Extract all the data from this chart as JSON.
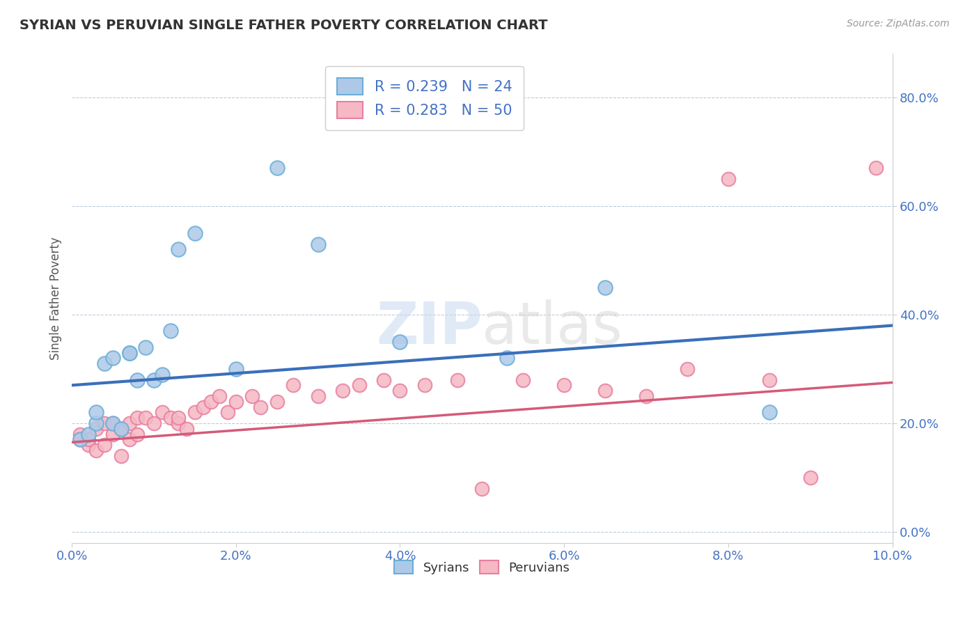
{
  "title": "SYRIAN VS PERUVIAN SINGLE FATHER POVERTY CORRELATION CHART",
  "source": "Source: ZipAtlas.com",
  "xlim": [
    0.0,
    0.1
  ],
  "ylim": [
    -0.02,
    0.88
  ],
  "syrian_R": 0.239,
  "syrian_N": 24,
  "peruvian_R": 0.283,
  "peruvian_N": 50,
  "syrian_color": "#aec9e8",
  "peruvian_color": "#f5b8c4",
  "syrian_edge_color": "#6baed6",
  "peruvian_edge_color": "#e87fa0",
  "syrian_line_color": "#3a6fba",
  "peruvian_line_color": "#d45a7a",
  "tick_color": "#4472c4",
  "watermark_text": "ZIPatlas",
  "syrian_x": [
    0.001,
    0.002,
    0.003,
    0.003,
    0.004,
    0.005,
    0.005,
    0.006,
    0.007,
    0.007,
    0.008,
    0.009,
    0.01,
    0.011,
    0.012,
    0.013,
    0.015,
    0.02,
    0.025,
    0.03,
    0.04,
    0.053,
    0.065,
    0.085
  ],
  "syrian_y": [
    0.17,
    0.18,
    0.2,
    0.22,
    0.31,
    0.2,
    0.32,
    0.19,
    0.33,
    0.33,
    0.28,
    0.34,
    0.28,
    0.29,
    0.37,
    0.52,
    0.55,
    0.3,
    0.67,
    0.53,
    0.35,
    0.32,
    0.45,
    0.22
  ],
  "peruvian_x": [
    0.001,
    0.001,
    0.002,
    0.002,
    0.003,
    0.003,
    0.004,
    0.004,
    0.005,
    0.005,
    0.006,
    0.006,
    0.007,
    0.007,
    0.008,
    0.008,
    0.009,
    0.01,
    0.011,
    0.012,
    0.013,
    0.013,
    0.014,
    0.015,
    0.016,
    0.017,
    0.018,
    0.019,
    0.02,
    0.022,
    0.023,
    0.025,
    0.027,
    0.03,
    0.033,
    0.035,
    0.038,
    0.04,
    0.043,
    0.047,
    0.05,
    0.055,
    0.06,
    0.065,
    0.07,
    0.075,
    0.08,
    0.085,
    0.09,
    0.098
  ],
  "peruvian_y": [
    0.18,
    0.17,
    0.16,
    0.17,
    0.15,
    0.19,
    0.16,
    0.2,
    0.18,
    0.2,
    0.14,
    0.19,
    0.2,
    0.17,
    0.18,
    0.21,
    0.21,
    0.2,
    0.22,
    0.21,
    0.2,
    0.21,
    0.19,
    0.22,
    0.23,
    0.24,
    0.25,
    0.22,
    0.24,
    0.25,
    0.23,
    0.24,
    0.27,
    0.25,
    0.26,
    0.27,
    0.28,
    0.26,
    0.27,
    0.28,
    0.08,
    0.28,
    0.27,
    0.26,
    0.25,
    0.3,
    0.65,
    0.28,
    0.1,
    0.67
  ],
  "syrian_line_x0": 0.0,
  "syrian_line_y0": 0.27,
  "syrian_line_x1": 0.1,
  "syrian_line_y1": 0.38,
  "peruvian_line_x0": 0.0,
  "peruvian_line_y0": 0.165,
  "peruvian_line_x1": 0.1,
  "peruvian_line_y1": 0.275
}
